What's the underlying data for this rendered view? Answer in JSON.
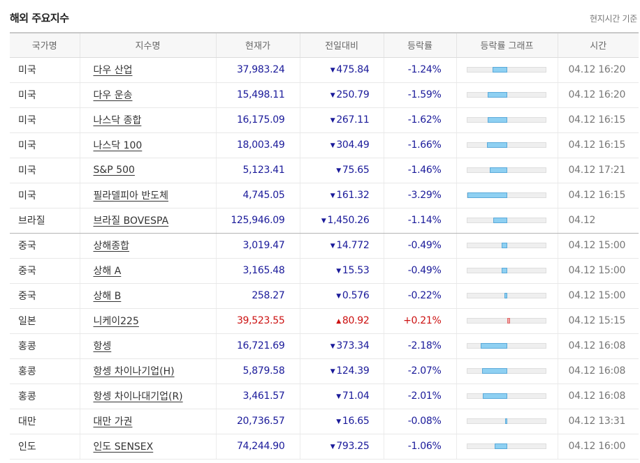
{
  "header": {
    "title": "해외 주요지수",
    "basis": "현지시간 기준"
  },
  "columns": [
    "국가명",
    "지수명",
    "현재가",
    "전일대비",
    "등락률",
    "등락률 그래프",
    "시간"
  ],
  "rows": [
    {
      "country": "미국",
      "name": "다우 산업",
      "price": "37,983.24",
      "change": "475.84",
      "dir": "down",
      "rate": "-1.24%",
      "rate_value": -1.24,
      "time": "04.12 16:20"
    },
    {
      "country": "미국",
      "name": "다우 운송",
      "price": "15,498.11",
      "change": "250.79",
      "dir": "down",
      "rate": "-1.59%",
      "rate_value": -1.59,
      "time": "04.12 16:20"
    },
    {
      "country": "미국",
      "name": "나스닥 종합",
      "price": "16,175.09",
      "change": "267.11",
      "dir": "down",
      "rate": "-1.62%",
      "rate_value": -1.62,
      "time": "04.12 16:15"
    },
    {
      "country": "미국",
      "name": "나스닥 100",
      "price": "18,003.49",
      "change": "304.49",
      "dir": "down",
      "rate": "-1.66%",
      "rate_value": -1.66,
      "time": "04.12 16:15"
    },
    {
      "country": "미국",
      "name": "S&P 500",
      "price": "5,123.41",
      "change": "75.65",
      "dir": "down",
      "rate": "-1.46%",
      "rate_value": -1.46,
      "time": "04.12 17:21"
    },
    {
      "country": "미국",
      "name": "필라델피아 반도체",
      "price": "4,745.05",
      "change": "161.32",
      "dir": "down",
      "rate": "-3.29%",
      "rate_value": -3.29,
      "time": "04.12 16:15"
    },
    {
      "country": "브라질",
      "name": "브라질 BOVESPA",
      "price": "125,946.09",
      "change": "1,450.26",
      "dir": "down",
      "rate": "-1.14%",
      "rate_value": -1.14,
      "time": "04.12",
      "group_end": true
    },
    {
      "country": "중국",
      "name": "상해종합",
      "price": "3,019.47",
      "change": "14.772",
      "dir": "down",
      "rate": "-0.49%",
      "rate_value": -0.49,
      "time": "04.12 15:00"
    },
    {
      "country": "중국",
      "name": "상해 A",
      "price": "3,165.48",
      "change": "15.53",
      "dir": "down",
      "rate": "-0.49%",
      "rate_value": -0.49,
      "time": "04.12 15:00"
    },
    {
      "country": "중국",
      "name": "상해 B",
      "price": "258.27",
      "change": "0.576",
      "dir": "down",
      "rate": "-0.22%",
      "rate_value": -0.22,
      "time": "04.12 15:00"
    },
    {
      "country": "일본",
      "name": "니케이225",
      "price": "39,523.55",
      "change": "80.92",
      "dir": "up",
      "rate": "+0.21%",
      "rate_value": 0.21,
      "time": "04.12 15:15"
    },
    {
      "country": "홍콩",
      "name": "항셍",
      "price": "16,721.69",
      "change": "373.34",
      "dir": "down",
      "rate": "-2.18%",
      "rate_value": -2.18,
      "time": "04.12 16:08"
    },
    {
      "country": "홍콩",
      "name": "항셍 차이나기업(H)",
      "price": "5,879.58",
      "change": "124.39",
      "dir": "down",
      "rate": "-2.07%",
      "rate_value": -2.07,
      "time": "04.12 16:08"
    },
    {
      "country": "홍콩",
      "name": "항셍 차이나대기업(R)",
      "price": "3,461.57",
      "change": "71.04",
      "dir": "down",
      "rate": "-2.01%",
      "rate_value": -2.01,
      "time": "04.12 16:08"
    },
    {
      "country": "대만",
      "name": "대만 가권",
      "price": "20,736.57",
      "change": "16.65",
      "dir": "down",
      "rate": "-0.08%",
      "rate_value": -0.08,
      "time": "04.12 13:31"
    },
    {
      "country": "인도",
      "name": "인도 SENSEX",
      "price": "74,244.90",
      "change": "793.25",
      "dir": "down",
      "rate": "-1.06%",
      "rate_value": -1.06,
      "time": "04.12 16:00"
    }
  ],
  "colors": {
    "down": "#1a1a9a",
    "up": "#cc1111",
    "bar_down": "#8ed0f2",
    "bar_up": "#f4a2a2"
  },
  "icons": {
    "down": "triangle-down-icon",
    "up": "triangle-up-icon"
  }
}
